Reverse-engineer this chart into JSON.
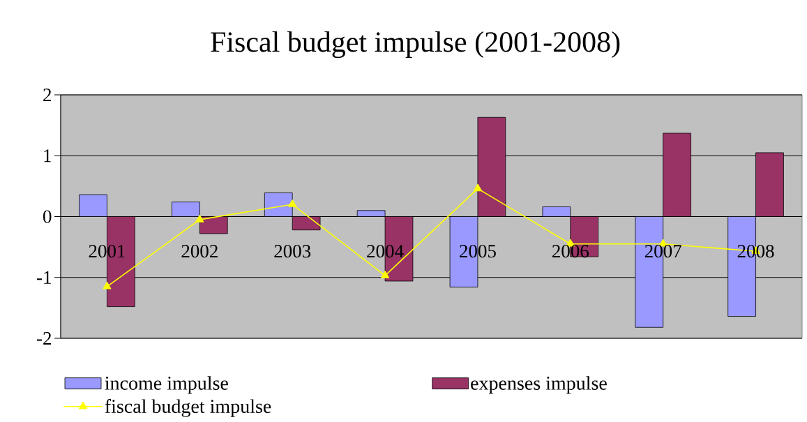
{
  "chart_data": {
    "type": "bar",
    "title": "Fiscal budget impulse (2001-2008)",
    "categories": [
      "2001",
      "2002",
      "2003",
      "2004",
      "2005",
      "2006",
      "2007",
      "2008"
    ],
    "series": [
      {
        "name": "income impulse",
        "color": "#9999ff",
        "values": [
          0.36,
          0.24,
          0.39,
          0.1,
          -1.16,
          0.16,
          -1.82,
          -1.64
        ]
      },
      {
        "name": "expenses impulse",
        "color": "#993366",
        "values": [
          -1.48,
          -0.28,
          -0.22,
          -1.06,
          1.63,
          -0.66,
          1.37,
          1.05
        ]
      },
      {
        "name": "fiscal budget impulse",
        "type": "line",
        "color": "#ffff00",
        "marker": "triangle",
        "line_style": "solid",
        "values": [
          -1.15,
          -0.05,
          0.2,
          -0.97,
          0.46,
          -0.45,
          -0.45,
          -0.57
        ]
      }
    ],
    "ylim": [
      -2,
      2
    ],
    "yticks": [
      -2,
      -1,
      0,
      1,
      2
    ],
    "grid": "y",
    "legend": "bottom"
  }
}
